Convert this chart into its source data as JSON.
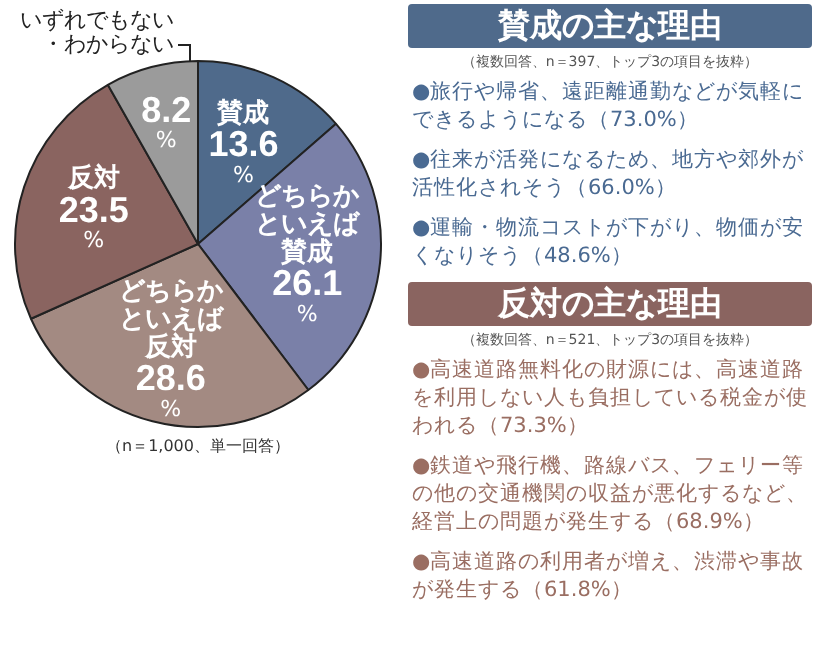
{
  "chart_data": {
    "type": "pie",
    "categories": [
      "賛成",
      "どちらかといえば賛成",
      "どちらかといえば反対",
      "反対",
      "いずれでもない・わからない"
    ],
    "values": [
      13.6,
      26.1,
      28.6,
      23.5,
      8.2
    ],
    "colors": [
      "#4f6a8b",
      "#7a80a8",
      "#a38a82",
      "#8a6460",
      "#9b9b9b"
    ],
    "value_labels": [
      "13.6%",
      "26.1%",
      "28.6%",
      "23.5%",
      "8.2%"
    ],
    "legend": false,
    "annotations": [
      "（n＝1,000、単一回答）",
      "賛成の主な理由",
      "（複数回答、n＝397、トップ3の項目を抜粋）",
      "●旅行や帰省、遠距離通勤などが気軽にできるようになる（73.0%）",
      "●往来が活発になるため、地方や郊外が活性化されそう（66.0%）",
      "●運輸・物流コストが下がり、物価が安くなりそう（48.6%）",
      "反対の主な理由",
      "（複数回答、n＝521、トップ3の項目を抜粋）",
      "●高速道路無料化の財源には、高速道路を利用しない人も負担している税金が使われる（73.3%）",
      "●鉄道や飛行機、路線バス、フェリー等の他の交通機関の収益が悪化するなど、経営上の問題が発生する（68.9%）",
      "●高速道路の利用者が増え、渋滞や事故が発生する（61.8%）"
    ]
  }
}
